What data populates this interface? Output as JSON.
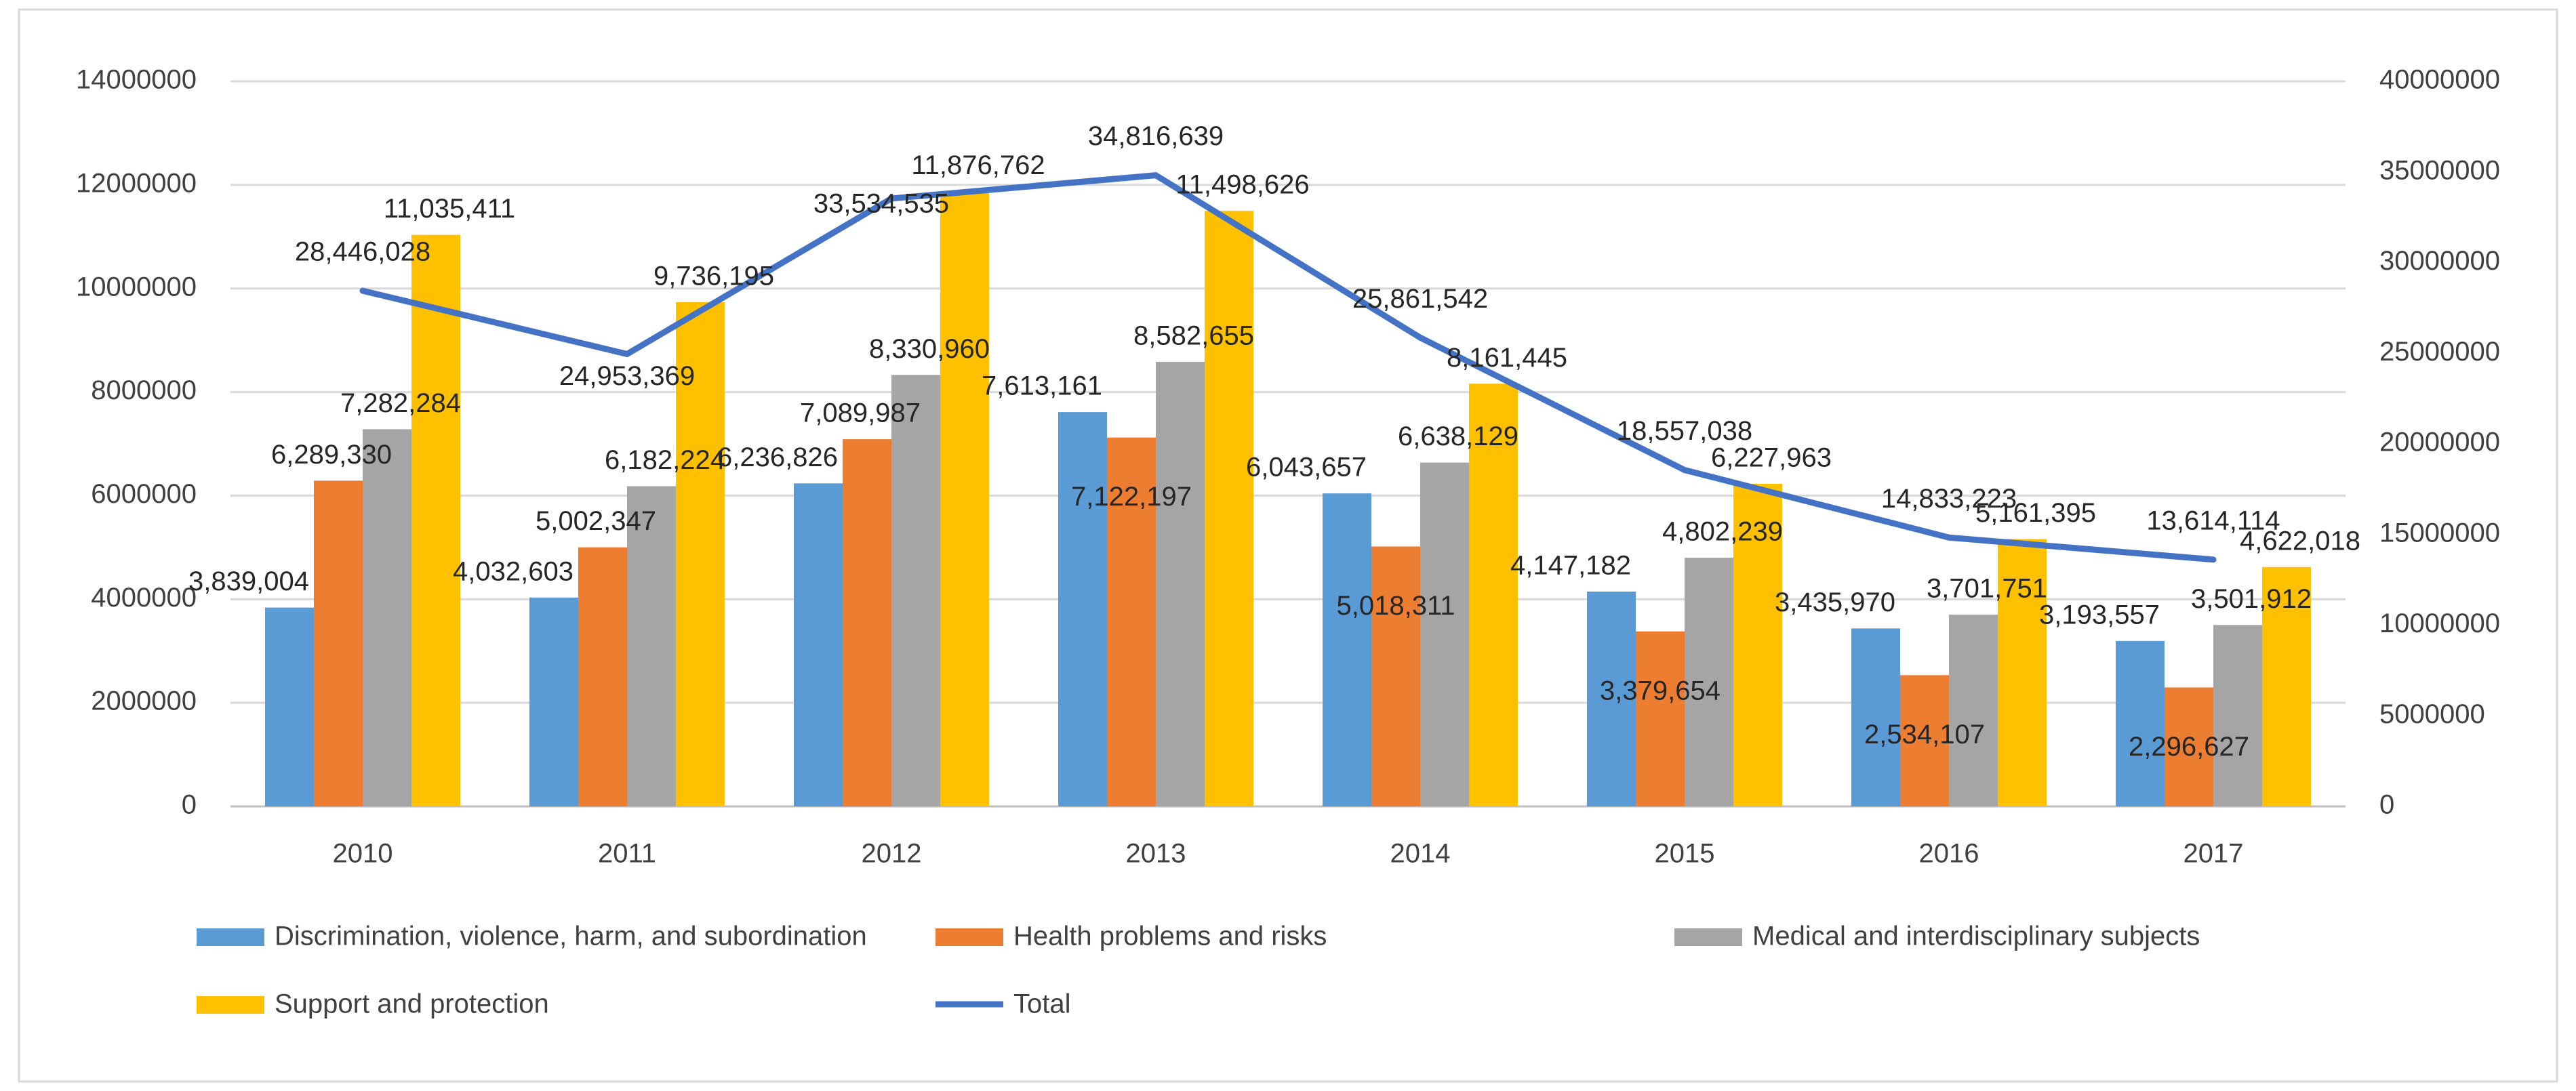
{
  "chart_data": {
    "type": "bar",
    "categories": [
      "2010",
      "2011",
      "2012",
      "2013",
      "2014",
      "2015",
      "2016",
      "2017"
    ],
    "series": [
      {
        "name": "Discrimination, violence, harm, and subordination",
        "color": "#5B9BD5",
        "axis": "left",
        "values": [
          3839004,
          4032603,
          6236826,
          7613161,
          6043657,
          4147182,
          3435970,
          3193557
        ],
        "labels": [
          "3,839,004",
          "4,032,603",
          "6,236,826",
          "7,613,161",
          "6,043,657",
          "4,147,182",
          "3,435,970",
          "3,193,557"
        ]
      },
      {
        "name": "Health problems and risks",
        "color": "#ED7D31",
        "axis": "left",
        "values": [
          6289330,
          5002347,
          7089987,
          7122197,
          5018311,
          3379654,
          2534107,
          2296627
        ],
        "labels": [
          "6,289,330",
          "5,002,347",
          "7,089,987",
          "7,122,197",
          "5,018,311",
          "3,379,654",
          "2,534,107",
          "2,296,627"
        ]
      },
      {
        "name": "Medical and interdisciplinary subjects",
        "color": "#A5A5A5",
        "axis": "left",
        "values": [
          7282284,
          6182224,
          8330960,
          8582655,
          6638129,
          4802239,
          3701751,
          3501912
        ],
        "labels": [
          "7,282,284",
          "6,182,224",
          "8,330,960",
          "8,582,655",
          "6,638,129",
          "4,802,239",
          "3,701,751",
          "3,501,912"
        ]
      },
      {
        "name": "Support and protection",
        "color": "#FFC000",
        "axis": "left",
        "values": [
          11035411,
          9736195,
          11876762,
          11498626,
          8161445,
          6227963,
          5161395,
          4622018
        ],
        "labels": [
          "11,035,411",
          "9,736,195",
          "11,876,762",
          "11,498,626",
          "8,161,445",
          "6,227,963",
          "5,161,395",
          "4,622,018"
        ]
      },
      {
        "name": "Total",
        "color": "#4472C4",
        "axis": "right",
        "kind": "line",
        "values": [
          28446028,
          24953369,
          33534535,
          34816639,
          25861542,
          18557038,
          14833223,
          13614114
        ],
        "labels": [
          "28,446,028",
          "24,953,369",
          "33,534,535",
          "34,816,639",
          "25,861,542",
          "18,557,038",
          "14,833,223",
          "13,614,114"
        ]
      }
    ],
    "y_left": {
      "min": 0,
      "max": 14000000,
      "ticks": [
        "0",
        "2000000",
        "4000000",
        "6000000",
        "8000000",
        "10000000",
        "12000000",
        "14000000"
      ]
    },
    "y_right": {
      "min": 0,
      "max": 40000000,
      "ticks": [
        "0",
        "5000000",
        "10000000",
        "15000000",
        "20000000",
        "25000000",
        "30000000",
        "35000000",
        "40000000"
      ]
    },
    "grid": true,
    "legend_position": "bottom",
    "title": "",
    "xlabel": "",
    "ylabel": ""
  }
}
